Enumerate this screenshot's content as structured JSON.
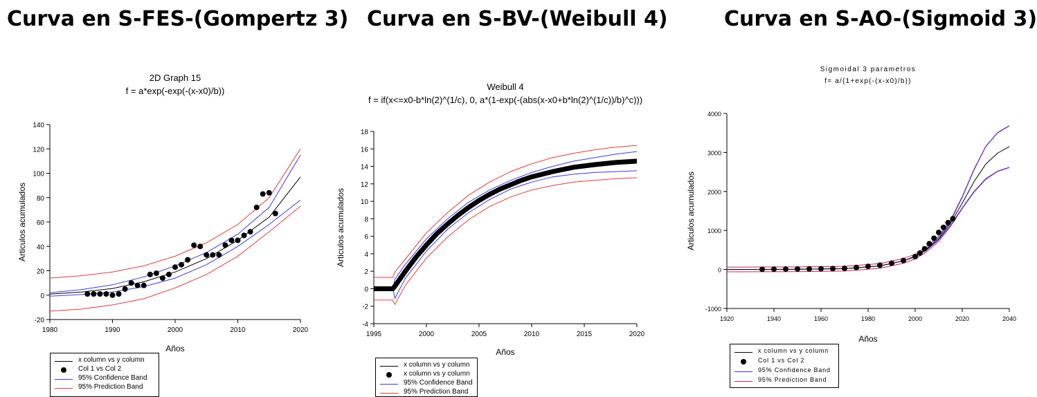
{
  "headings": [
    "Curva en S-FES-(Gompertz 3)",
    "Curva en S-BV-(Weibull 4)",
    "Curva en S-AO-(Sigmoid 3)"
  ],
  "chart_data": [
    {
      "type": "scatter",
      "title": "2D Graph 15",
      "subtitle": "f = a*exp(-exp(-(x-x0)/b))",
      "xlabel": "Años",
      "ylabel": "Articulos acumulados",
      "xlim": [
        1980,
        2020
      ],
      "ylim": [
        -20,
        140
      ],
      "xticks": [
        1980,
        1990,
        2000,
        2010,
        2020
      ],
      "yticks": [
        -20,
        0,
        20,
        40,
        60,
        80,
        100,
        120,
        140
      ],
      "grid": false,
      "legend_position": "bottom",
      "legend": [
        "x column vs y column",
        "Col 1 vs Col 2",
        "95% Confidence Band",
        "95% Prediction Band"
      ],
      "points": {
        "x": [
          1986,
          1987,
          1988,
          1989,
          1990,
          1991,
          1992,
          1993,
          1994,
          1995,
          1996,
          1997,
          1998,
          1999,
          2000,
          2001,
          2002,
          2003,
          2004,
          2005,
          2006,
          2007,
          2008,
          2009,
          2010,
          2011,
          2012,
          2013,
          2014,
          2015,
          2016
        ],
        "y": [
          1,
          1,
          1,
          1,
          0,
          1,
          5,
          10,
          8,
          8,
          17,
          18,
          14,
          17,
          23,
          25,
          29,
          41,
          40,
          33,
          33,
          33,
          41,
          45,
          45,
          49,
          52,
          72,
          83,
          84,
          67
        ]
      },
      "fit": {
        "x": [
          1980,
          1985,
          1990,
          1995,
          2000,
          2005,
          2010,
          2015,
          2020
        ],
        "y": [
          0.8,
          2.5,
          5.5,
          11,
          19,
          30,
          45,
          64,
          97
        ]
      },
      "confidence_band": {
        "x": [
          1980,
          1985,
          1990,
          1995,
          2000,
          2005,
          2010,
          2015,
          2020
        ],
        "upper": [
          2,
          4.5,
          8.5,
          15,
          24,
          35,
          50,
          72,
          115
        ],
        "lower": [
          -0.8,
          0.5,
          2.5,
          7,
          14,
          25,
          40,
          58,
          78
        ]
      },
      "prediction_band": {
        "x": [
          1980,
          1985,
          1990,
          1995,
          2000,
          2005,
          2010,
          2015,
          2020
        ],
        "upper": [
          14,
          16,
          19,
          24,
          32,
          43,
          58,
          80,
          120
        ],
        "lower": [
          -13,
          -11.5,
          -8,
          -3,
          6,
          17,
          32,
          52,
          73
        ]
      },
      "colors": {
        "fit": "#000000",
        "points": "#000000",
        "confidence": "#3a3ae8",
        "prediction": "#e83a3a"
      }
    },
    {
      "type": "line",
      "title": "Weibull 4",
      "subtitle": "f = if(x<=x0-b*ln(2)^(1/c), 0, a*(1-exp(-(abs(x-x0+b*ln(2)^(1/c))/b)^c)))",
      "xlabel": "Años",
      "ylabel": "Articulos acumulados",
      "xlim": [
        1995,
        2020
      ],
      "ylim": [
        -4,
        18
      ],
      "xticks": [
        1995,
        2000,
        2005,
        2010,
        2015,
        2020
      ],
      "yticks": [
        -4,
        -2,
        0,
        2,
        4,
        6,
        8,
        10,
        12,
        14,
        16,
        18
      ],
      "grid": false,
      "legend_position": "bottom",
      "legend": [
        "x column vs y column",
        "x column vs y column",
        "95% Confidence Band",
        "95% Prediction Band"
      ],
      "fit": {
        "x": [
          1995,
          1996,
          1996.8,
          1997,
          1998,
          1999,
          2000,
          2001,
          2002,
          2003,
          2004,
          2005,
          2006,
          2007,
          2008,
          2009,
          2010,
          2012,
          2014,
          2016,
          2018,
          2020
        ],
        "y": [
          0,
          0,
          0,
          0.3,
          2.0,
          3.6,
          5.0,
          6.3,
          7.4,
          8.4,
          9.3,
          10.1,
          10.8,
          11.4,
          11.9,
          12.4,
          12.8,
          13.4,
          13.9,
          14.2,
          14.45,
          14.6
        ]
      },
      "confidence_band": {
        "x": [
          1995,
          1996.8,
          1997,
          1998,
          2000,
          2002,
          2004,
          2006,
          2008,
          2010,
          2012,
          2014,
          2016,
          2018,
          2020
        ],
        "upper": [
          0,
          0,
          1.1,
          2.8,
          5.7,
          8.0,
          9.9,
          11.3,
          12.4,
          13.3,
          14.0,
          14.6,
          15.0,
          15.4,
          15.7
        ],
        "lower": [
          0,
          0,
          -1.1,
          1.2,
          4.3,
          6.8,
          8.7,
          10.2,
          11.4,
          12.2,
          12.8,
          13.1,
          13.3,
          13.4,
          13.5
        ]
      },
      "prediction_band": {
        "x": [
          1995,
          1996.8,
          1997,
          1998,
          2000,
          2002,
          2004,
          2006,
          2008,
          2010,
          2012,
          2014,
          2016,
          2018,
          2020
        ],
        "upper": [
          1.3,
          1.3,
          1.9,
          3.4,
          6.4,
          8.7,
          10.7,
          12.2,
          13.4,
          14.3,
          15.0,
          15.5,
          15.9,
          16.2,
          16.4
        ],
        "lower": [
          -1.3,
          -1.3,
          -1.8,
          0.4,
          3.5,
          5.9,
          7.9,
          9.4,
          10.5,
          11.3,
          11.8,
          12.2,
          12.4,
          12.6,
          12.7
        ]
      },
      "colors": {
        "fit": "#000000",
        "confidence": "#3a3ae8",
        "prediction": "#e83a3a"
      }
    },
    {
      "type": "scatter",
      "title": "Sigmoidal 3 parametros",
      "subtitle": "f= a/(1+exp(-(x-x0)/b))",
      "xlabel": "Años",
      "ylabel": "Articulos acumulados",
      "xlim": [
        1920,
        2040
      ],
      "ylim": [
        -1000,
        4000
      ],
      "xticks": [
        1920,
        1940,
        1960,
        1980,
        2000,
        2020,
        2040
      ],
      "yticks": [
        -1000,
        0,
        1000,
        2000,
        3000,
        4000
      ],
      "grid": false,
      "legend_position": "bottom",
      "legend": [
        "x column vs y column",
        "Col 1 vs Col 2",
        "95% Confidence Band",
        "95% Prediction Band"
      ],
      "points": {
        "x": [
          1935,
          1940,
          1945,
          1950,
          1955,
          1960,
          1965,
          1970,
          1975,
          1980,
          1985,
          1990,
          1995,
          2000,
          2002,
          2004,
          2006,
          2008,
          2010,
          2012,
          2014,
          2016
        ],
        "y": [
          5,
          8,
          10,
          12,
          15,
          18,
          22,
          30,
          50,
          80,
          110,
          160,
          230,
          330,
          420,
          530,
          660,
          800,
          950,
          1080,
          1200,
          1300
        ]
      },
      "fit": {
        "x": [
          1920,
          1950,
          1970,
          1985,
          1995,
          2000,
          2005,
          2010,
          2015,
          2020,
          2025,
          2030,
          2035,
          2040
        ],
        "y": [
          0,
          5,
          20,
          90,
          220,
          330,
          520,
          780,
          1180,
          1700,
          2250,
          2700,
          2980,
          3150
        ]
      },
      "confidence_band": {
        "x": [
          1920,
          1950,
          1970,
          1985,
          1995,
          2000,
          2005,
          2010,
          2015,
          2020,
          2025,
          2030,
          2035,
          2040
        ],
        "upper": [
          0,
          5,
          20,
          90,
          220,
          340,
          540,
          820,
          1230,
          1850,
          2550,
          3150,
          3500,
          3680
        ],
        "lower": [
          0,
          5,
          20,
          90,
          220,
          320,
          500,
          760,
          1130,
          1580,
          2000,
          2330,
          2520,
          2620
        ]
      },
      "prediction_band": {
        "x": [
          1920,
          1950,
          1970,
          1985,
          1995,
          2000,
          2005,
          2010,
          2015,
          2020,
          2025,
          2030,
          2035,
          2040
        ],
        "upper": [
          60,
          65,
          80,
          150,
          280,
          390,
          580,
          860,
          1260,
          1870,
          2570,
          3160,
          3510,
          3690
        ],
        "lower": [
          -60,
          -55,
          -40,
          30,
          160,
          270,
          460,
          720,
          1100,
          1560,
          1980,
          2310,
          2510,
          2610
        ]
      },
      "colors": {
        "fit": "#000000",
        "points": "#000000",
        "confidence": "#3a3ae8",
        "prediction": "#c8205a"
      }
    }
  ]
}
